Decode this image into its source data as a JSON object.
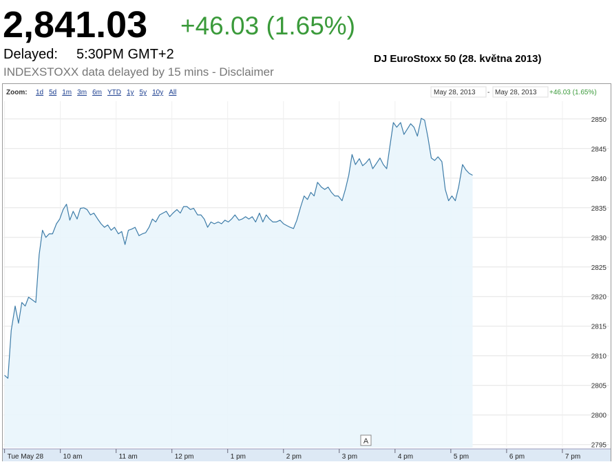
{
  "header": {
    "price": "2,841.03",
    "change": "+46.03 (1.65%)",
    "delayed_label": "Delayed:",
    "delayed_time": "5:30PM GMT+2",
    "notice": "INDEXSTOXX data delayed by 15 mins - Disclaimer"
  },
  "toolbar": {
    "zoom_label": "Zoom:",
    "zoom_options": [
      "1d",
      "5d",
      "1m",
      "3m",
      "6m",
      "YTD",
      "1y",
      "5y",
      "10y",
      "All"
    ],
    "range_start": "May 28, 2013",
    "range_separator": "-",
    "range_end": "May 28, 2013",
    "range_change": "+46.03 (1.65%)"
  },
  "chart_data": {
    "type": "line",
    "title": "DJ EuroStoxx 50 (28. května 2013)",
    "annotation": "A",
    "color": "#3d7ca8",
    "fill": "#e9f5fc",
    "grid": true,
    "xlim": [
      8.98,
      19.84
    ],
    "xticks": [
      {
        "value": 9,
        "label": "Tue May 28"
      },
      {
        "value": 10,
        "label": "10 am"
      },
      {
        "value": 11,
        "label": "11 am"
      },
      {
        "value": 12,
        "label": "12 pm"
      },
      {
        "value": 13,
        "label": "1 pm"
      },
      {
        "value": 14,
        "label": "2 pm"
      },
      {
        "value": 15,
        "label": "3 pm"
      },
      {
        "value": 16,
        "label": "4 pm"
      },
      {
        "value": 17,
        "label": "5 pm"
      },
      {
        "value": 18,
        "label": "6 pm"
      },
      {
        "value": 19,
        "label": "7 pm"
      }
    ],
    "ylim": [
      2794.5,
      2853
    ],
    "yticks": [
      2795,
      2800,
      2805,
      2810,
      2815,
      2820,
      2825,
      2830,
      2835,
      2840,
      2845,
      2850
    ],
    "x": [
      9.0,
      9.06,
      9.12,
      9.19,
      9.25,
      9.31,
      9.37,
      9.43,
      9.49,
      9.56,
      9.62,
      9.68,
      9.74,
      9.8,
      9.86,
      9.93,
      9.99,
      10.05,
      10.11,
      10.17,
      10.23,
      10.3,
      10.36,
      10.42,
      10.48,
      10.54,
      10.6,
      10.67,
      10.73,
      10.79,
      10.85,
      10.91,
      10.97,
      11.04,
      11.1,
      11.16,
      11.22,
      11.28,
      11.34,
      11.41,
      11.47,
      11.53,
      11.59,
      11.65,
      11.71,
      11.78,
      11.84,
      11.9,
      11.96,
      12.02,
      12.09,
      12.15,
      12.21,
      12.27,
      12.33,
      12.39,
      12.46,
      12.52,
      12.58,
      12.64,
      12.7,
      12.76,
      12.83,
      12.89,
      12.95,
      13.01,
      13.07,
      13.13,
      13.2,
      13.26,
      13.32,
      13.38,
      13.44,
      13.5,
      13.57,
      13.63,
      13.69,
      13.75,
      13.81,
      13.87,
      13.94,
      14.0,
      14.06,
      14.12,
      14.18,
      14.24,
      14.31,
      14.37,
      14.43,
      14.49,
      14.55,
      14.61,
      14.68,
      14.74,
      14.8,
      14.86,
      14.92,
      14.98,
      15.05,
      15.11,
      15.17,
      15.23,
      15.29,
      15.36,
      15.42,
      15.48,
      15.54,
      15.6,
      15.66,
      15.73,
      15.79,
      15.85,
      15.91,
      15.97,
      16.03,
      16.1,
      16.16,
      16.22,
      16.28,
      16.34,
      16.4,
      16.47,
      16.53,
      16.59,
      16.65,
      16.71,
      16.77,
      16.84,
      16.9,
      16.96,
      17.02,
      17.08,
      17.14,
      17.21,
      17.27,
      17.33,
      17.39
    ],
    "values": [
      2806.7,
      2806.2,
      2814.3,
      2818.4,
      2815.5,
      2819.0,
      2818.4,
      2819.9,
      2819.5,
      2819.0,
      2827.1,
      2831.2,
      2830.0,
      2830.6,
      2830.6,
      2832.3,
      2833.1,
      2834.7,
      2835.6,
      2832.9,
      2834.4,
      2833.1,
      2834.9,
      2835.0,
      2834.7,
      2833.8,
      2834.1,
      2833.1,
      2832.3,
      2831.7,
      2832.1,
      2831.2,
      2831.7,
      2830.6,
      2831.0,
      2828.8,
      2831.2,
      2831.4,
      2831.7,
      2830.3,
      2830.6,
      2830.8,
      2831.7,
      2833.1,
      2832.6,
      2833.8,
      2834.1,
      2834.4,
      2833.5,
      2834.1,
      2834.7,
      2834.1,
      2835.2,
      2835.2,
      2834.7,
      2834.9,
      2833.8,
      2833.8,
      2833.1,
      2831.7,
      2832.6,
      2832.3,
      2832.6,
      2832.3,
      2832.9,
      2832.6,
      2833.1,
      2833.8,
      2832.9,
      2833.1,
      2833.5,
      2833.1,
      2833.5,
      2832.6,
      2834.1,
      2832.6,
      2833.8,
      2833.1,
      2832.6,
      2832.6,
      2832.9,
      2832.3,
      2832.0,
      2831.7,
      2831.5,
      2832.9,
      2835.2,
      2837.0,
      2836.4,
      2837.6,
      2837.0,
      2839.3,
      2838.5,
      2838.1,
      2838.5,
      2837.6,
      2837.0,
      2837.0,
      2836.2,
      2838.1,
      2840.5,
      2844.0,
      2842.3,
      2843.3,
      2842.1,
      2842.6,
      2843.3,
      2841.6,
      2842.4,
      2843.4,
      2842.3,
      2841.6,
      2845.5,
      2849.4,
      2848.6,
      2849.4,
      2847.4,
      2848.3,
      2849.2,
      2848.6,
      2847.1,
      2850.1,
      2849.8,
      2846.9,
      2843.4,
      2843.0,
      2843.6,
      2842.8,
      2838.1,
      2836.2,
      2837.0,
      2836.2,
      2838.5,
      2842.3,
      2841.4,
      2840.8,
      2840.5
    ]
  }
}
